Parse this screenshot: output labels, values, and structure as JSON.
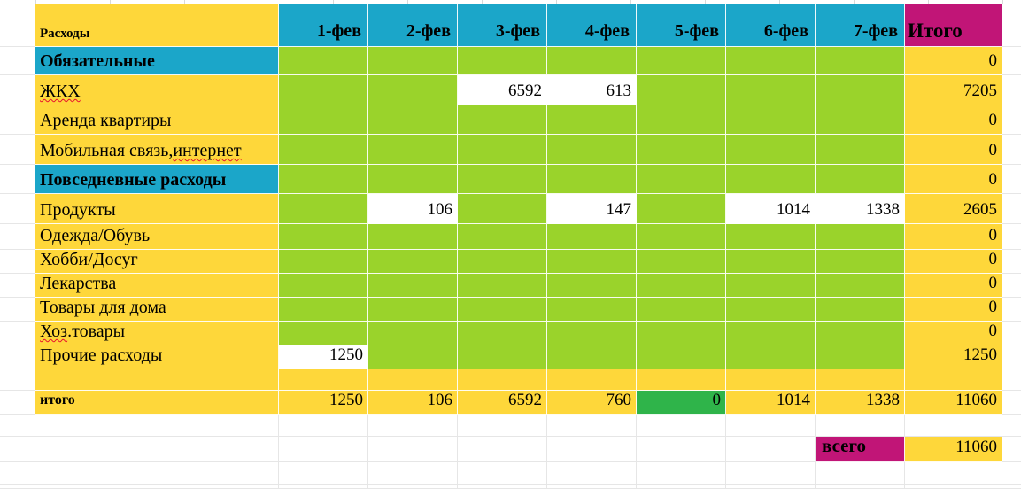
{
  "colors": {
    "yellow": "#FED73A",
    "teal": "#1BA6C9",
    "lime": "#9AD32B",
    "green": "#2FB44A",
    "magenta": "#C11577",
    "white_cell": "#FFFFFF"
  },
  "header": {
    "expenses_label": "Расходы",
    "date_columns": [
      "1-фев",
      "2-фев",
      "3-фев",
      "4-фев",
      "5-фев",
      "6-фев",
      "7-фев"
    ],
    "total_label": "Итого"
  },
  "rows": [
    {
      "type": "section",
      "label": "Обязательные",
      "total": "0"
    },
    {
      "type": "item",
      "label": "ЖКХ",
      "label_parts": {
        "before": "",
        "wavy": "ЖКХ",
        "after": ""
      },
      "values": {
        "2": "6592",
        "3": "613"
      },
      "total": "7205"
    },
    {
      "type": "item",
      "label": "Аренда квартиры",
      "total": "0"
    },
    {
      "type": "item",
      "label": "Мобильная связь, интернет",
      "label_parts": {
        "before": "Мобильная связь, ",
        "wavy": "интернет",
        "after": ""
      },
      "total": "0"
    },
    {
      "type": "section",
      "label": "Повседневные расходы",
      "total": "0"
    },
    {
      "type": "item",
      "label": "Продукты",
      "values": {
        "1": "106",
        "3": "147",
        "5": "1014",
        "6": "1338"
      },
      "total": "2605"
    },
    {
      "type": "item",
      "label": "Одежда/Обувь",
      "total": "0"
    },
    {
      "type": "item",
      "label": "Хобби/Досуг",
      "total": "0"
    },
    {
      "type": "item",
      "label": "Лекарства",
      "total": "0"
    },
    {
      "type": "item",
      "label": "Товары для дома",
      "total": "0"
    },
    {
      "type": "item",
      "label": "Хоз.товары",
      "label_parts": {
        "before": "",
        "wavy": "Хоз",
        "after": ".товары"
      },
      "total": "0"
    },
    {
      "type": "item",
      "label": "Прочие расходы",
      "values": {
        "0": "1250"
      },
      "total": "1250"
    },
    {
      "type": "spacer"
    },
    {
      "type": "grand_total",
      "label": "итого",
      "values": [
        "1250",
        "106",
        "6592",
        "760",
        "0",
        "1014",
        "1338"
      ],
      "highlight_index": 4,
      "total": "11060"
    }
  ],
  "footer": {
    "vsego_label": "всего",
    "vsego_value": "11060"
  }
}
